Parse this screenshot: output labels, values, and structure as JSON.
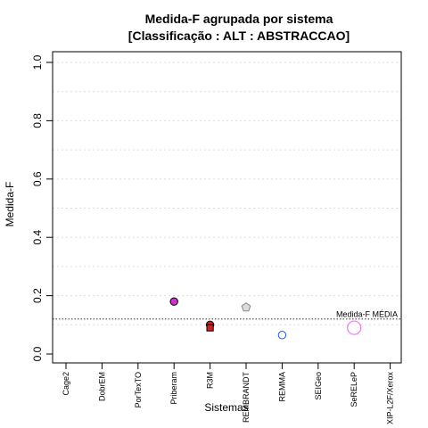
{
  "chart_data": {
    "type": "scatter",
    "title_line1": "Medida-F agrupada por sistema",
    "title_line2": "[Classificação : ALT : ABSTRACCAO]",
    "xlabel": "Sistemas",
    "ylabel": "Medida-F",
    "ylim": [
      0,
      1
    ],
    "yticks": [
      "0.0",
      "0.2",
      "0.4",
      "0.6",
      "0.8",
      "1.0"
    ],
    "grid": "dotted horizontal",
    "categories": [
      "Cage2",
      "DobrEM",
      "PorTexTO",
      "Priberam",
      "R3M",
      "REMBRANDT",
      "REMMA",
      "SEIGeo",
      "SeRELeP",
      "XIP-L2F/Xerox"
    ],
    "points": [
      {
        "category": "Priberam",
        "value": 0.18,
        "shape": "circle",
        "fill": "#cc33cc",
        "stroke": "#000000"
      },
      {
        "category": "R3M",
        "value": 0.1,
        "shape": "circle",
        "fill": "#cc2222",
        "stroke": "#000000"
      },
      {
        "category": "R3M",
        "value": 0.09,
        "shape": "square",
        "fill": "#cc2222",
        "stroke": "#000000"
      },
      {
        "category": "REMBRANDT",
        "value": 0.16,
        "shape": "pentagon",
        "fill": "#dddddd",
        "stroke": "#888888"
      },
      {
        "category": "REMMA",
        "value": 0.065,
        "shape": "circle",
        "fill": "#ffffff",
        "stroke": "#2255ee"
      },
      {
        "category": "SeRELeP",
        "value": 0.09,
        "shape": "circle-large",
        "fill": "#ffffff",
        "stroke": "#ee77ee"
      }
    ],
    "mean_line": {
      "value": 0.12,
      "label": "Medida-F MÉDIA"
    }
  }
}
